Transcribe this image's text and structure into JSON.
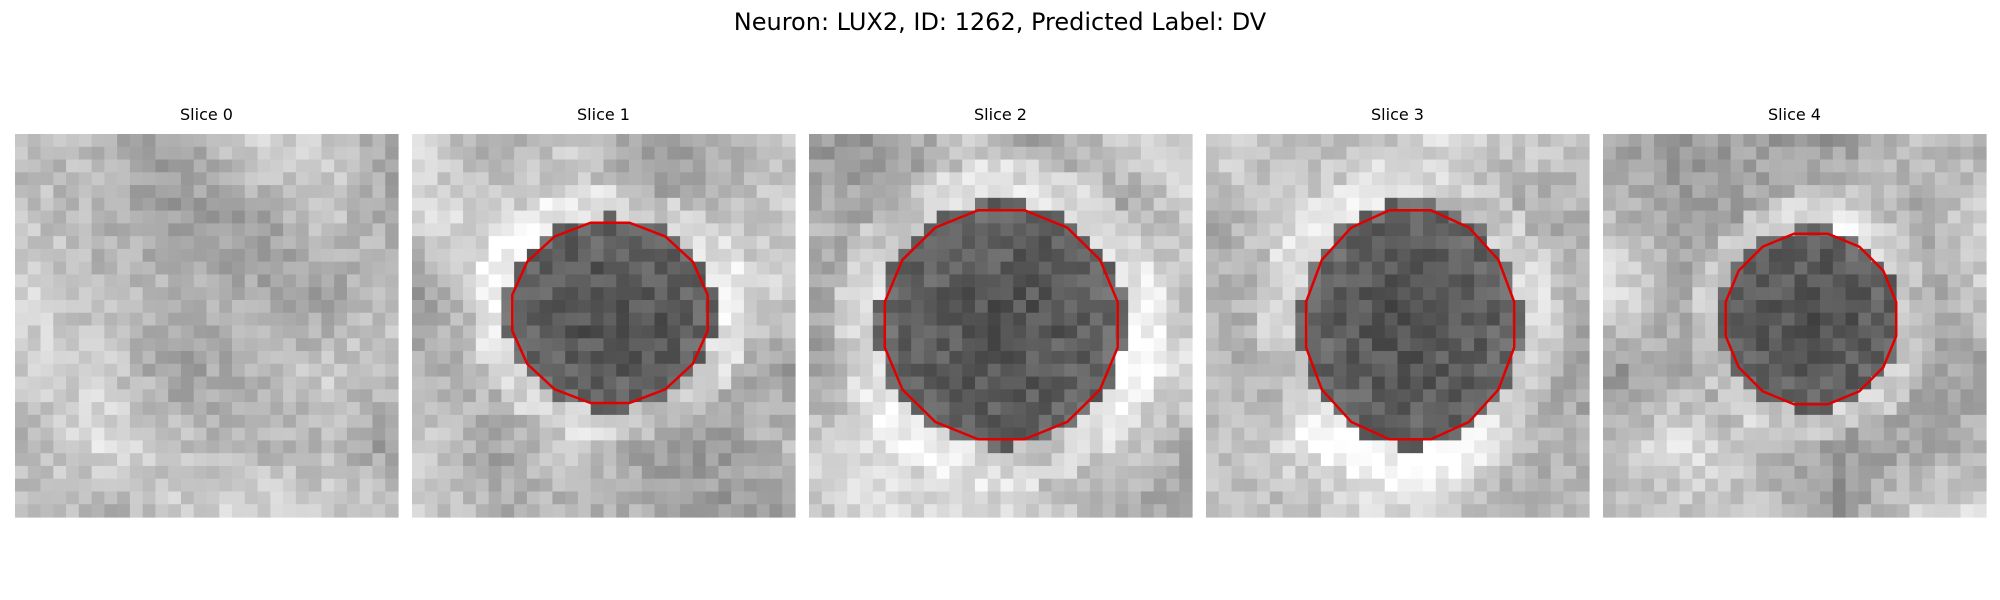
{
  "title": "Neuron: LUX2, ID: 1262, Predicted Label: DV",
  "panels": [
    {
      "title": "Slice 0"
    },
    {
      "title": "Slice 1"
    },
    {
      "title": "Slice 2"
    },
    {
      "title": "Slice 3"
    },
    {
      "title": "Slice 4"
    }
  ]
}
